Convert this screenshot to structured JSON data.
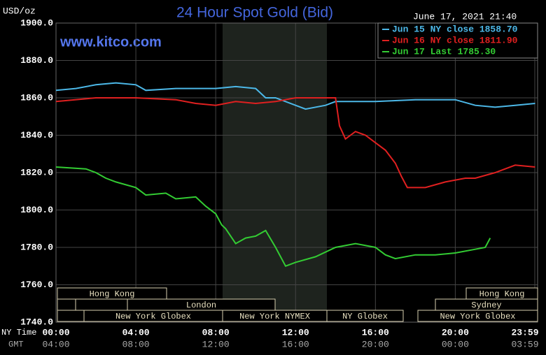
{
  "chart_data": {
    "type": "line",
    "title": "24 Hour Spot Gold (Bid)",
    "y_unit": "USD/oz",
    "date": "June 17, 2021 21:40",
    "watermark": "www.kitco.com",
    "x_label": "NY Time",
    "x2_label": "GMT",
    "xlim": [
      0,
      23.9833
    ],
    "xticks": [
      {
        "value": 0,
        "label": "00:00"
      },
      {
        "value": 4,
        "label": "04:00"
      },
      {
        "value": 8,
        "label": "08:00"
      },
      {
        "value": 12,
        "label": "12:00"
      },
      {
        "value": 16,
        "label": "16:00"
      },
      {
        "value": 20,
        "label": "20:00"
      },
      {
        "value": 23.9833,
        "label": "23:59"
      }
    ],
    "x2ticks": [
      {
        "value": 0,
        "label": "04:00"
      },
      {
        "value": 4,
        "label": "08:00"
      },
      {
        "value": 8,
        "label": "12:00"
      },
      {
        "value": 12,
        "label": "16:00"
      },
      {
        "value": 16,
        "label": "20:00"
      },
      {
        "value": 20,
        "label": "00:00"
      },
      {
        "value": 23.9833,
        "label": "03:59"
      }
    ],
    "ylim": [
      1740,
      1900
    ],
    "yticks": [
      {
        "value": 1740,
        "label": "1740.0"
      },
      {
        "value": 1760,
        "label": "1760.0"
      },
      {
        "value": 1780,
        "label": "1780.0"
      },
      {
        "value": 1800,
        "label": "1800.0"
      },
      {
        "value": 1820,
        "label": "1820.0"
      },
      {
        "value": 1840,
        "label": "1840.0"
      },
      {
        "value": 1860,
        "label": "1860.0"
      },
      {
        "value": 1880,
        "label": "1880.0"
      },
      {
        "value": 1900,
        "label": "1900.0"
      }
    ],
    "grid": true,
    "legend": "top-right",
    "sessions": [
      "Hong Kong",
      "London",
      "New York Globex",
      "New York NYMEX",
      "NY Globex",
      "Hong Kong",
      "Sydney",
      "New York Globex"
    ],
    "series": [
      {
        "name": "Jun 15 NY close 1858.70",
        "color": "#4cb8e8",
        "x": [
          0,
          1,
          2,
          3,
          4,
          4.5,
          6,
          8,
          9,
          10,
          10.5,
          11,
          12,
          12.5,
          13.5,
          14,
          16,
          18,
          20,
          21,
          22,
          23,
          24
        ],
        "values": [
          1864,
          1865,
          1867,
          1868,
          1867,
          1864,
          1865,
          1865,
          1866,
          1865,
          1860,
          1860,
          1856,
          1854,
          1856,
          1858,
          1858,
          1859,
          1859,
          1856,
          1855,
          1856,
          1857
        ]
      },
      {
        "name": "Jun 16 NY close 1811.90",
        "color": "#e02020",
        "x": [
          0,
          2,
          4,
          6,
          7,
          8,
          9,
          10,
          11,
          12,
          13,
          14,
          14.2,
          14.5,
          15,
          15.5,
          16,
          16.5,
          17,
          17.3,
          17.6,
          18.5,
          19.5,
          20.5,
          21,
          22,
          23,
          24
        ],
        "values": [
          1858,
          1860,
          1860,
          1859,
          1857,
          1856,
          1858,
          1857,
          1858,
          1860,
          1860,
          1860,
          1845,
          1838,
          1842,
          1840,
          1836,
          1832,
          1825,
          1818,
          1812,
          1812,
          1815,
          1817,
          1817,
          1820,
          1824,
          1823
        ]
      },
      {
        "name": "Jun 17 Last 1785.30",
        "color": "#33cc33",
        "x": [
          0,
          1.5,
          2,
          2.5,
          3,
          4,
          4.5,
          5.5,
          6,
          7,
          7.5,
          8,
          8.3,
          8.5,
          9,
          9.5,
          10,
          10.5,
          11,
          11.5,
          12,
          13,
          14,
          15,
          16,
          16.5,
          17,
          18,
          19,
          20,
          21,
          21.5,
          21.75
        ],
        "values": [
          1823,
          1822,
          1820,
          1817,
          1815,
          1812,
          1808,
          1809,
          1806,
          1807,
          1802,
          1798,
          1792,
          1790,
          1782,
          1785,
          1786,
          1789,
          1780,
          1770,
          1772,
          1775,
          1780,
          1782,
          1780,
          1776,
          1774,
          1776,
          1776,
          1777,
          1779,
          1780,
          1785
        ]
      }
    ]
  }
}
